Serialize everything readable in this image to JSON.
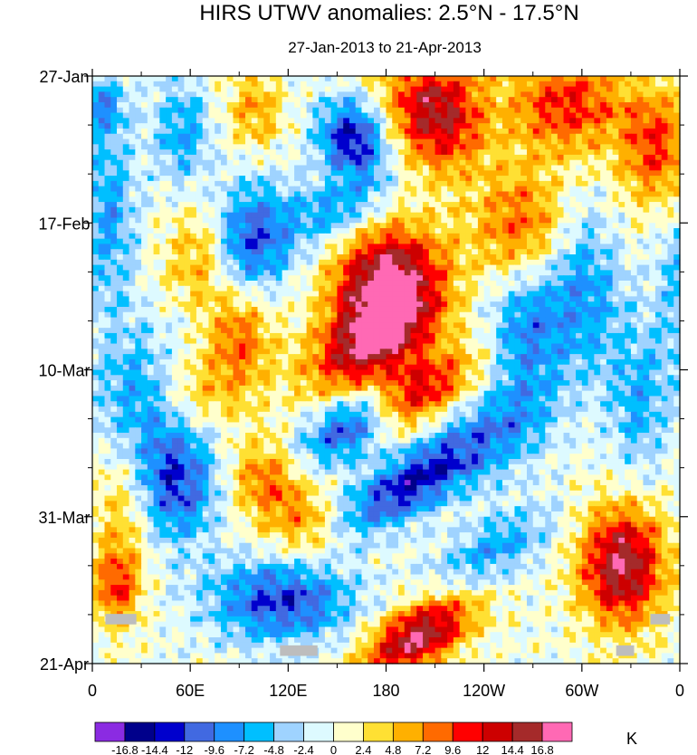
{
  "chart_data": {
    "type": "heatmap",
    "title": "HIRS UTWV anomalies: 2.5°N - 17.5°N",
    "subtitle": "27-Jan-2013 to 21-Apr-2013",
    "xlabel": "",
    "ylabel": "",
    "x_ticks": [
      "0",
      "60E",
      "120E",
      "180",
      "120W",
      "60W",
      "0"
    ],
    "y_ticks": [
      "27-Jan",
      "17-Feb",
      "10-Mar",
      "31-Mar",
      "21-Apr"
    ],
    "colorbar": {
      "unit": "K",
      "levels": [
        "-16.8",
        "-14.4",
        "-12",
        "-9.6",
        "-7.2",
        "-4.8",
        "-2.4",
        "0",
        "2.4",
        "4.8",
        "7.2",
        "9.6",
        "12",
        "14.4",
        "16.8"
      ],
      "colors": [
        "#8B2BE2",
        "#00008B",
        "#0000CD",
        "#4169E1",
        "#1E90FF",
        "#00BFFF",
        "#9FD3FF",
        "#DDFAFF",
        "#FFFFCC",
        "#FFE033",
        "#FFB000",
        "#FF6A00",
        "#FF0000",
        "#CD0000",
        "#A52A2A",
        "#FF69B4"
      ]
    },
    "features": [
      {
        "lon": 180,
        "day": 29,
        "amp": 1.0,
        "sx": 24,
        "sy": 5,
        "angle": -0.55
      },
      {
        "lon": 172,
        "day": 38,
        "amp": 0.9,
        "sx": 30,
        "sy": 4,
        "angle": -0.55
      },
      {
        "lon": 195,
        "day": 46,
        "amp": 0.75,
        "sx": 30,
        "sy": 3,
        "angle": -0.5
      },
      {
        "lon": 200,
        "day": 80,
        "amp": 0.95,
        "sx": 26,
        "sy": 3,
        "angle": -0.5
      },
      {
        "lon": 325,
        "day": 70,
        "amp": 0.95,
        "sx": 18,
        "sy": 6,
        "angle": 0
      },
      {
        "lon": 210,
        "day": 5,
        "amp": 0.85,
        "sx": 20,
        "sy": 6,
        "angle": -0.4
      },
      {
        "lon": 290,
        "day": 4,
        "amp": 0.6,
        "sx": 25,
        "sy": 5,
        "angle": 0
      },
      {
        "lon": 262,
        "day": 22,
        "amp": 0.55,
        "sx": 20,
        "sy": 6,
        "angle": 0
      },
      {
        "lon": 345,
        "day": 10,
        "amp": 0.55,
        "sx": 16,
        "sy": 6,
        "angle": 0
      },
      {
        "lon": 90,
        "day": 37,
        "amp": 0.5,
        "sx": 14,
        "sy": 6,
        "angle": 0
      },
      {
        "lon": 68,
        "day": 26,
        "amp": 0.45,
        "sx": 15,
        "sy": 5,
        "angle": 0
      },
      {
        "lon": 60,
        "day": 45,
        "amp": 0.3,
        "sx": 18,
        "sy": 4,
        "angle": 0
      },
      {
        "lon": 105,
        "day": 58,
        "amp": 0.45,
        "sx": 14,
        "sy": 4,
        "angle": -0.5
      },
      {
        "lon": 15,
        "day": 73,
        "amp": 0.55,
        "sx": 10,
        "sy": 4,
        "angle": 0
      },
      {
        "lon": 130,
        "day": 64,
        "amp": 0.35,
        "sx": 16,
        "sy": 4,
        "angle": -0.5
      },
      {
        "lon": 160,
        "day": 9,
        "amp": -0.8,
        "sx": 14,
        "sy": 4,
        "angle": -0.6
      },
      {
        "lon": 160,
        "day": 50,
        "amp": -0.9,
        "sx": 22,
        "sy": 3,
        "angle": -0.5
      },
      {
        "lon": 190,
        "day": 59,
        "amp": -0.7,
        "sx": 30,
        "sy": 3,
        "angle": -0.5
      },
      {
        "lon": 115,
        "day": 75,
        "amp": -0.7,
        "sx": 30,
        "sy": 4,
        "angle": 0
      },
      {
        "lon": 50,
        "day": 58,
        "amp": -0.7,
        "sx": 18,
        "sy": 6,
        "angle": 0
      },
      {
        "lon": 95,
        "day": 24,
        "amp": -0.7,
        "sx": 18,
        "sy": 6,
        "angle": 0.3
      },
      {
        "lon": 30,
        "day": 45,
        "amp": -0.4,
        "sx": 20,
        "sy": 6,
        "angle": 0
      },
      {
        "lon": 10,
        "day": 20,
        "amp": -0.4,
        "sx": 12,
        "sy": 10,
        "angle": 0
      },
      {
        "lon": 265,
        "day": 36,
        "amp": -0.5,
        "sx": 16,
        "sy": 8,
        "angle": 0
      },
      {
        "lon": 300,
        "day": 31,
        "amp": -0.45,
        "sx": 16,
        "sy": 8,
        "angle": 0
      },
      {
        "lon": 150,
        "day": 19,
        "amp": -0.4,
        "sx": 22,
        "sy": 3,
        "angle": -0.4
      },
      {
        "lon": 240,
        "day": 52,
        "amp": -0.45,
        "sx": 30,
        "sy": 4,
        "angle": -0.5
      },
      {
        "lon": 245,
        "day": 68,
        "amp": -0.4,
        "sx": 28,
        "sy": 3,
        "angle": -0.5
      },
      {
        "lon": 55,
        "day": 8,
        "amp": -0.4,
        "sx": 12,
        "sy": 5,
        "angle": 0
      },
      {
        "lon": 335,
        "day": 46,
        "amp": -0.35,
        "sx": 14,
        "sy": 8,
        "angle": 0
      },
      {
        "lon": 5,
        "day": 4,
        "amp": -0.4,
        "sx": 10,
        "sy": 3,
        "angle": 0
      },
      {
        "lon": 100,
        "day": 5,
        "amp": 0.35,
        "sx": 12,
        "sy": 4,
        "angle": 0
      },
      {
        "lon": 360,
        "day": 30,
        "amp": -0.3,
        "sx": 10,
        "sy": 8,
        "angle": 0
      },
      {
        "lon": 20,
        "day": 62,
        "amp": 0.3,
        "sx": 14,
        "sy": 6,
        "angle": 0
      }
    ],
    "missing": [
      {
        "lon0": 8,
        "lon1": 27,
        "day0": 76.9,
        "day1": 78.4
      },
      {
        "lon0": 115,
        "lon1": 138,
        "day0": 81.4,
        "day1": 82.9
      },
      {
        "lon0": 321,
        "lon1": 332,
        "day0": 81.4,
        "day1": 82.9
      },
      {
        "lon0": 342,
        "lon1": 354,
        "day0": 76.9,
        "day1": 78.4
      }
    ]
  }
}
